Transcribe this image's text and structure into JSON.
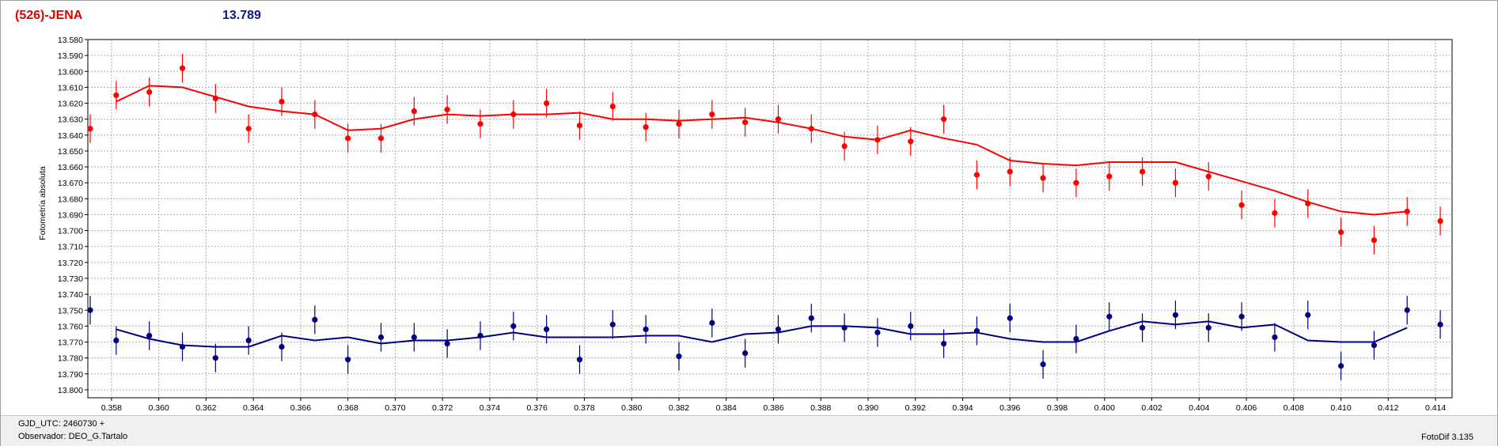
{
  "header": {
    "title": "(526)-JENA",
    "value": "13.789"
  },
  "footer": {
    "gjd": "GJD_UTC: 2460730 +",
    "observer": "Observador: DEO_G.Tartalo",
    "version": "FotoDif 3.135"
  },
  "colors": {
    "red_series": "#ff0000",
    "blue_series": "#000080",
    "grid": "#b0b0b0"
  },
  "chart_data": {
    "type": "scatter",
    "ylabel": "Fotometría absoluta",
    "xlabel": "",
    "xlim": [
      0.357,
      0.4147
    ],
    "ylim": [
      13.805,
      13.58
    ],
    "y_inverted": true,
    "grid": true,
    "x_ticks": [
      "0.358",
      "0.360",
      "0.362",
      "0.364",
      "0.366",
      "0.368",
      "0.370",
      "0.372",
      "0.374",
      "0.376",
      "0.378",
      "0.380",
      "0.382",
      "0.384",
      "0.386",
      "0.388",
      "0.390",
      "0.392",
      "0.394",
      "0.396",
      "0.398",
      "0.400",
      "0.402",
      "0.404",
      "0.406",
      "0.408",
      "0.410",
      "0.412",
      "0.414"
    ],
    "y_ticks": [
      "13.580",
      "13.590",
      "13.600",
      "13.610",
      "13.620",
      "13.630",
      "13.640",
      "13.650",
      "13.660",
      "13.670",
      "13.680",
      "13.690",
      "13.700",
      "13.710",
      "13.720",
      "13.730",
      "13.740",
      "13.750",
      "13.760",
      "13.770",
      "13.780",
      "13.790",
      "13.800"
    ],
    "x": [
      0.3571,
      0.3582,
      0.3596,
      0.361,
      0.3624,
      0.3638,
      0.3652,
      0.3666,
      0.368,
      0.3694,
      0.3708,
      0.3722,
      0.3736,
      0.375,
      0.3764,
      0.3778,
      0.3792,
      0.3806,
      0.382,
      0.3834,
      0.3848,
      0.3862,
      0.3876,
      0.389,
      0.3904,
      0.3918,
      0.3932,
      0.3946,
      0.396,
      0.3974,
      0.3988,
      0.4002,
      0.4016,
      0.403,
      0.4044,
      0.4058,
      0.4072,
      0.4086,
      0.41,
      0.4114,
      0.4128,
      0.4142
    ],
    "series": [
      {
        "values": [
          13.636,
          13.615,
          13.613,
          13.598,
          13.617,
          13.636,
          13.619,
          13.627,
          13.642,
          13.642,
          13.625,
          13.624,
          13.633,
          13.627,
          13.62,
          13.634,
          13.622,
          13.635,
          13.633,
          13.627,
          13.632,
          13.63,
          13.636,
          13.647,
          13.643,
          13.644,
          13.63,
          13.665,
          13.663,
          13.667,
          13.67,
          13.666,
          13.663,
          13.67,
          13.666,
          13.684,
          13.689,
          13.683,
          13.701,
          13.706,
          13.688,
          13.694
        ],
        "error": [
          0.009,
          0.009,
          0.009,
          0.009,
          0.009,
          0.009,
          0.009,
          0.009,
          0.009,
          0.009,
          0.009,
          0.009,
          0.009,
          0.009,
          0.009,
          0.009,
          0.009,
          0.009,
          0.009,
          0.009,
          0.009,
          0.009,
          0.009,
          0.009,
          0.009,
          0.009,
          0.009,
          0.009,
          0.009,
          0.009,
          0.009,
          0.009,
          0.009,
          0.009,
          0.009,
          0.009,
          0.009,
          0.009,
          0.009,
          0.009,
          0.009,
          0.009
        ],
        "fit_x": [
          0.3582,
          0.3596,
          0.361,
          0.3624,
          0.3638,
          0.3652,
          0.3666,
          0.368,
          0.3694,
          0.3708,
          0.3722,
          0.3736,
          0.375,
          0.3764,
          0.3778,
          0.3792,
          0.3806,
          0.382,
          0.3834,
          0.3848,
          0.3862,
          0.3876,
          0.389,
          0.3904,
          0.3918,
          0.3932,
          0.3946,
          0.396,
          0.3974,
          0.3988,
          0.4002,
          0.4016,
          0.403,
          0.4044,
          0.4058,
          0.4072,
          0.4086,
          0.41,
          0.4114,
          0.4128
        ],
        "fit_y": [
          13.619,
          13.609,
          13.61,
          13.616,
          13.622,
          13.625,
          13.627,
          13.637,
          13.636,
          13.63,
          13.627,
          13.628,
          13.627,
          13.627,
          13.626,
          13.63,
          13.63,
          13.631,
          13.63,
          13.629,
          13.632,
          13.636,
          13.641,
          13.643,
          13.637,
          13.642,
          13.646,
          13.656,
          13.658,
          13.659,
          13.657,
          13.657,
          13.657,
          13.663,
          13.669,
          13.675,
          13.682,
          13.688,
          13.69,
          13.688
        ]
      },
      {
        "values": [
          13.75,
          13.769,
          13.766,
          13.773,
          13.78,
          13.769,
          13.773,
          13.756,
          13.781,
          13.767,
          13.767,
          13.771,
          13.766,
          13.76,
          13.762,
          13.781,
          13.759,
          13.762,
          13.779,
          13.758,
          13.777,
          13.762,
          13.755,
          13.761,
          13.764,
          13.76,
          13.771,
          13.763,
          13.755,
          13.784,
          13.768,
          13.754,
          13.761,
          13.753,
          13.761,
          13.754,
          13.767,
          13.753,
          13.785,
          13.772,
          13.75,
          13.759
        ],
        "error": [
          0.009,
          0.009,
          0.009,
          0.009,
          0.009,
          0.009,
          0.009,
          0.009,
          0.009,
          0.009,
          0.009,
          0.009,
          0.009,
          0.009,
          0.009,
          0.009,
          0.009,
          0.009,
          0.009,
          0.009,
          0.009,
          0.009,
          0.009,
          0.009,
          0.009,
          0.009,
          0.009,
          0.009,
          0.009,
          0.009,
          0.009,
          0.009,
          0.009,
          0.009,
          0.009,
          0.009,
          0.009,
          0.009,
          0.009,
          0.009,
          0.009,
          0.009
        ],
        "fit_x": [
          0.3582,
          0.3596,
          0.361,
          0.3624,
          0.3638,
          0.3652,
          0.3666,
          0.368,
          0.3694,
          0.3708,
          0.3722,
          0.3736,
          0.375,
          0.3764,
          0.3778,
          0.3792,
          0.3806,
          0.382,
          0.3834,
          0.3848,
          0.3862,
          0.3876,
          0.389,
          0.3904,
          0.3918,
          0.3932,
          0.3946,
          0.396,
          0.3974,
          0.3988,
          0.4002,
          0.4016,
          0.403,
          0.4044,
          0.4058,
          0.4072,
          0.4086,
          0.41,
          0.4114,
          0.4128
        ],
        "fit_y": [
          13.762,
          13.768,
          13.772,
          13.773,
          13.773,
          13.766,
          13.769,
          13.767,
          13.771,
          13.769,
          13.769,
          13.767,
          13.764,
          13.767,
          13.767,
          13.767,
          13.766,
          13.766,
          13.77,
          13.765,
          13.764,
          13.76,
          13.76,
          13.761,
          13.765,
          13.765,
          13.764,
          13.768,
          13.77,
          13.77,
          13.763,
          13.757,
          13.759,
          13.757,
          13.761,
          13.759,
          13.769,
          13.77,
          13.77,
          13.761
        ]
      }
    ]
  }
}
